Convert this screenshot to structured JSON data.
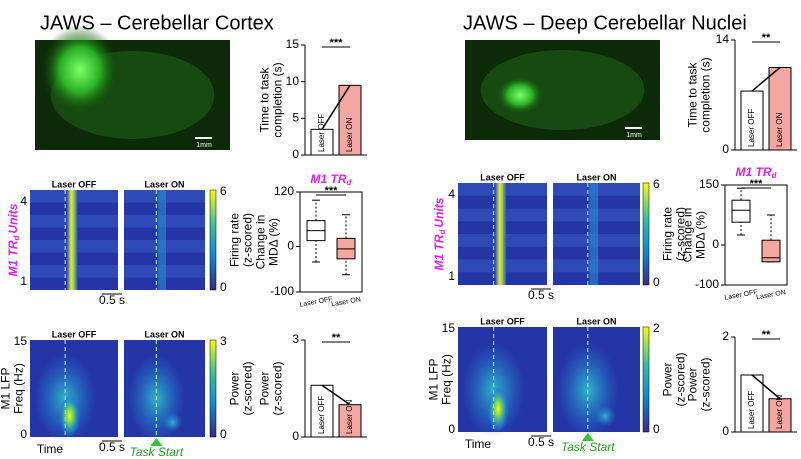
{
  "panels": [
    {
      "title": "JAWS – Cerebellar Cortex",
      "scale_bar": "1mm",
      "completion": {
        "ylabel": [
          "Time to task",
          "completion (s)"
        ],
        "ylim": [
          0,
          15
        ],
        "yticks": [
          0,
          5,
          10,
          15
        ],
        "sig": "***",
        "categories": [
          "Laser OFF",
          "Laser ON"
        ],
        "values": [
          3.5,
          9.5
        ],
        "colors": [
          "#ffffff",
          "#f4a6a0"
        ]
      },
      "raster": {
        "labels": [
          "Laser OFF",
          "Laser ON"
        ],
        "ylabel_main": "M1 TR",
        "ylabel_sub": "d",
        "ylabel_tail": "Units",
        "ytick_labels": [
          "4",
          "1"
        ],
        "time_bar": "0.5 s",
        "cbar_label": [
          "Firing rate",
          "(z-scored)"
        ],
        "cbar_ticks": [
          "6",
          "0"
        ]
      },
      "md": {
        "title_main": "M1 TR",
        "title_sub": "d",
        "ylabel": [
          "Change in",
          "MDΔ (%)"
        ],
        "ylim": [
          -100,
          120
        ],
        "yticks": [
          -100,
          0,
          120
        ],
        "sig": "***",
        "categories": [
          "Laser OFF",
          "Laser ON"
        ],
        "boxes": [
          {
            "low": -34,
            "q1": 13,
            "median": 35,
            "q3": 57,
            "high": 102
          },
          {
            "low": -62,
            "q1": -27,
            "median": -5,
            "q3": 18,
            "high": 70
          }
        ],
        "colors": [
          "#ffffff",
          "#f4a6a0"
        ]
      },
      "lfp": {
        "labels": [
          "Laser OFF",
          "Laser ON"
        ],
        "ylabel": [
          "M1 LFP",
          "Freq (Hz)"
        ],
        "ytick_labels": [
          "15",
          "0"
        ],
        "cbar_label": [
          "Power",
          "(z-scored)"
        ],
        "cbar_ticks": [
          "3",
          "0"
        ],
        "time": "Time",
        "time_bar": "0.5 s",
        "task_start": "Task Start"
      },
      "power": {
        "ylabel": [
          "Power",
          "(z-scored)"
        ],
        "ylim": [
          0,
          3
        ],
        "yticks": [
          0,
          3
        ],
        "sig": "**",
        "categories": [
          "Laser OFF",
          "Laser ON"
        ],
        "values": [
          1.6,
          1.0
        ],
        "colors": [
          "#ffffff",
          "#f4a6a0"
        ]
      }
    },
    {
      "title": "JAWS – Deep Cerebellar Nuclei",
      "scale_bar": "1mm",
      "completion": {
        "ylabel": [
          "Time to task",
          "completion (s)"
        ],
        "ylim": [
          0,
          14
        ],
        "yticks": [
          0,
          14
        ],
        "sig": "**",
        "categories": [
          "Laser OFF",
          "Laser ON"
        ],
        "values": [
          7.5,
          10.5
        ],
        "colors": [
          "#ffffff",
          "#f4a6a0"
        ]
      },
      "raster": {
        "labels": [
          "Laser OFF",
          "Laser ON"
        ],
        "ylabel_main": "M1 TR",
        "ylabel_sub": "d",
        "ylabel_tail": "Units",
        "ytick_labels": [
          "4",
          "1"
        ],
        "time_bar": "0.5 s",
        "cbar_label": [
          "Firing rate",
          "(z-scored)"
        ],
        "cbar_ticks": [
          "6",
          "0"
        ]
      },
      "md": {
        "title_main": "M1 TR",
        "title_sub": "d",
        "ylabel": [
          "Change in",
          "MDΔ (%)"
        ],
        "ylim": [
          -100,
          150
        ],
        "yticks": [
          -100,
          0,
          150
        ],
        "sig": "***",
        "categories": [
          "Laser OFF",
          "Laser ON"
        ],
        "boxes": [
          {
            "low": 25,
            "q1": 57,
            "median": 87,
            "q3": 112,
            "high": 142
          },
          {
            "low": -42,
            "q1": -42,
            "median": -32,
            "q3": 12,
            "high": 75
          }
        ],
        "colors": [
          "#ffffff",
          "#f4a6a0"
        ]
      },
      "lfp": {
        "labels": [
          "Laser OFF",
          "Laser ON"
        ],
        "ylabel": [
          "M1 LFP",
          "Freq (Hz)"
        ],
        "ytick_labels": [
          "15",
          "0"
        ],
        "cbar_label": [
          "Power",
          "(z-scored)"
        ],
        "cbar_ticks": [
          "2",
          "0"
        ],
        "time": "Time",
        "time_bar": "0.5 s",
        "task_start": "Task Start"
      },
      "power": {
        "ylabel": [
          "Power",
          "(z-scored)"
        ],
        "ylim": [
          0,
          2
        ],
        "yticks": [
          0,
          2
        ],
        "sig": "**",
        "categories": [
          "Laser OFF",
          "Laser ON"
        ],
        "values": [
          1.2,
          0.7
        ],
        "colors": [
          "#ffffff",
          "#f4a6a0"
        ]
      }
    }
  ]
}
